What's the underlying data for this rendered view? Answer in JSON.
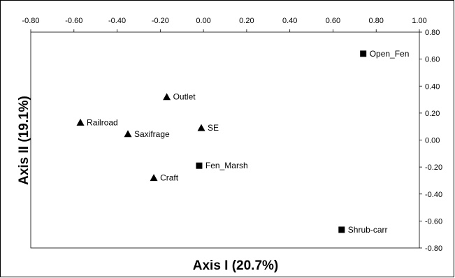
{
  "chart_data": {
    "type": "scatter",
    "xlabel": "Axis I (20.7%)",
    "ylabel": "Axis II (19.1%)",
    "xlim": [
      -0.8,
      1.0
    ],
    "ylim": [
      -0.8,
      0.8
    ],
    "x_ticks": [
      "-0.80",
      "-0.60",
      "-0.40",
      "-0.20",
      "0.00",
      "0.20",
      "0.40",
      "0.60",
      "0.80",
      "1.00"
    ],
    "y_ticks": [
      "0.80",
      "0.60",
      "0.40",
      "0.20",
      "0.00",
      "-0.20",
      "-0.40",
      "-0.60",
      "-0.80"
    ],
    "x_tick_values": [
      -0.8,
      -0.6,
      -0.4,
      -0.2,
      0.0,
      0.2,
      0.4,
      0.6,
      0.8,
      1.0
    ],
    "y_tick_values": [
      0.8,
      0.6,
      0.4,
      0.2,
      0.0,
      -0.2,
      -0.4,
      -0.6,
      -0.8
    ],
    "x_axis_position": "top",
    "y_axis_position": "right",
    "grid": false,
    "legend": "none",
    "points": [
      {
        "label": "Open_Fen",
        "x": 0.74,
        "y": 0.64,
        "marker": "square"
      },
      {
        "label": "Outlet",
        "x": -0.17,
        "y": 0.32,
        "marker": "triangle"
      },
      {
        "label": "Railroad",
        "x": -0.57,
        "y": 0.13,
        "marker": "triangle"
      },
      {
        "label": "SE",
        "x": -0.01,
        "y": 0.09,
        "marker": "triangle"
      },
      {
        "label": "Saxifrage",
        "x": -0.35,
        "y": 0.045,
        "marker": "triangle"
      },
      {
        "label": "Fen_Marsh",
        "x": -0.02,
        "y": -0.19,
        "marker": "square"
      },
      {
        "label": "Craft",
        "x": -0.23,
        "y": -0.28,
        "marker": "triangle"
      },
      {
        "label": "Shrub-carr",
        "x": 0.64,
        "y": -0.665,
        "marker": "square"
      }
    ],
    "marker_color": "#000000"
  }
}
